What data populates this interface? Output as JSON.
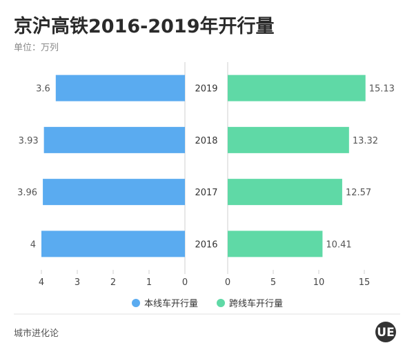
{
  "title": "京沪高铁2016-2019年开行量",
  "subtitle": "单位：万列",
  "source": "城市进化论",
  "logo": "UE",
  "colors": {
    "left": "#5aabf0",
    "right": "#5fd9a6",
    "axis": "#cfcfcf"
  },
  "chart_data": {
    "type": "bar",
    "orientation": "horizontal-butterfly",
    "categories": [
      "2019",
      "2018",
      "2017",
      "2016"
    ],
    "series": [
      {
        "name": "本线车开行量",
        "values": [
          3.6,
          3.93,
          3.96,
          4
        ],
        "labels": [
          "3.6",
          "3.93",
          "3.96",
          "4"
        ]
      },
      {
        "name": "跨线车开行量",
        "values": [
          15.13,
          13.32,
          12.57,
          10.41
        ],
        "labels": [
          "15.13",
          "13.32",
          "12.57",
          "10.41"
        ]
      }
    ],
    "axes": [
      {
        "side": "left",
        "range": [
          0,
          4
        ],
        "reversed": true,
        "ticks": [
          "4",
          "3",
          "2",
          "1",
          "0"
        ]
      },
      {
        "side": "right",
        "range": [
          0,
          15
        ],
        "ticks": [
          "0",
          "5",
          "10",
          "15"
        ]
      }
    ],
    "legend": {
      "position": "bottom"
    },
    "grid": false
  }
}
